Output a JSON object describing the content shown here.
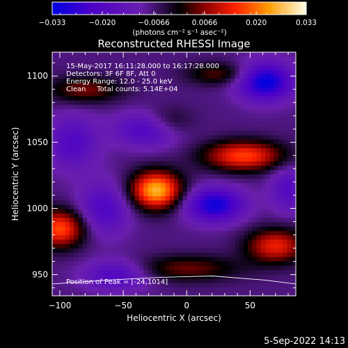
{
  "colorbar": {
    "ticks": [
      "-0.033",
      "-0.020",
      "-0.0066",
      "0.0066",
      "0.020",
      "0.033"
    ],
    "unit_label": "(photons cm⁻² s⁻¹ asec⁻²)",
    "range": [
      -0.033,
      0.033
    ]
  },
  "chart_data": {
    "type": "heatmap",
    "title": "Reconstructed RHESSI Image",
    "xlabel": "Heliocentric X (arcsec)",
    "ylabel": "Heliocentric Y (arcsec)",
    "xlim": [
      -106,
      86
    ],
    "ylim": [
      934,
      1118
    ],
    "xticks": [
      -100,
      -50,
      0,
      50
    ],
    "yticks": [
      950,
      1000,
      1050,
      1100
    ],
    "annotations": [
      "15-May-2017 16:11:28.000 to 16:17:28.000",
      "Detectors: 3F 6F 8F, Att 0",
      "Energy Range: 12.0 - 25.0 keV",
      "Clean     Total counts: 5.14E+04"
    ],
    "peak_label": "Position of Peak = [-24,1014]",
    "peak": [
      -24,
      1014
    ],
    "limb_curve": [
      [
        -106,
        943
      ],
      [
        -60,
        946
      ],
      [
        -20,
        948
      ],
      [
        20,
        949
      ],
      [
        60,
        946
      ],
      [
        86,
        943
      ]
    ],
    "features": [
      {
        "kind": "max",
        "x": -24,
        "y": 1014,
        "amp": 0.033,
        "sx": 14,
        "sy": 10
      },
      {
        "kind": "max",
        "x": 45,
        "y": 1040,
        "amp": 0.024,
        "sx": 22,
        "sy": 8
      },
      {
        "kind": "max",
        "x": -100,
        "y": 985,
        "amp": 0.025,
        "sx": 14,
        "sy": 10
      },
      {
        "kind": "max",
        "x": 70,
        "y": 972,
        "amp": 0.021,
        "sx": 16,
        "sy": 9
      },
      {
        "kind": "max",
        "x": 0,
        "y": 955,
        "amp": 0.012,
        "sx": 30,
        "sy": 7
      },
      {
        "kind": "max",
        "x": -80,
        "y": 1090,
        "amp": 0.013,
        "sx": 20,
        "sy": 7
      },
      {
        "kind": "max",
        "x": -15,
        "y": 1065,
        "amp": 0.01,
        "sx": 14,
        "sy": 8
      },
      {
        "kind": "max",
        "x": 25,
        "y": 1102,
        "amp": 0.011,
        "sx": 18,
        "sy": 6
      },
      {
        "kind": "min",
        "x": 62,
        "y": 1096,
        "amp": -0.026,
        "sx": 15,
        "sy": 10
      },
      {
        "kind": "min",
        "x": 22,
        "y": 1003,
        "amp": -0.024,
        "sx": 16,
        "sy": 9
      },
      {
        "kind": "min",
        "x": -30,
        "y": 1060,
        "amp": -0.016,
        "sx": 18,
        "sy": 9
      },
      {
        "kind": "min",
        "x": -65,
        "y": 1000,
        "amp": -0.014,
        "sx": 14,
        "sy": 14
      },
      {
        "kind": "min",
        "x": -55,
        "y": 950,
        "amp": -0.014,
        "sx": 18,
        "sy": 8
      },
      {
        "kind": "min",
        "x": -90,
        "y": 1050,
        "amp": -0.013,
        "sx": 14,
        "sy": 14
      },
      {
        "kind": "min",
        "x": 80,
        "y": 1015,
        "amp": -0.012,
        "sx": 10,
        "sy": 12
      }
    ]
  },
  "footer": {
    "date": "5-Sep-2022 14:13"
  }
}
